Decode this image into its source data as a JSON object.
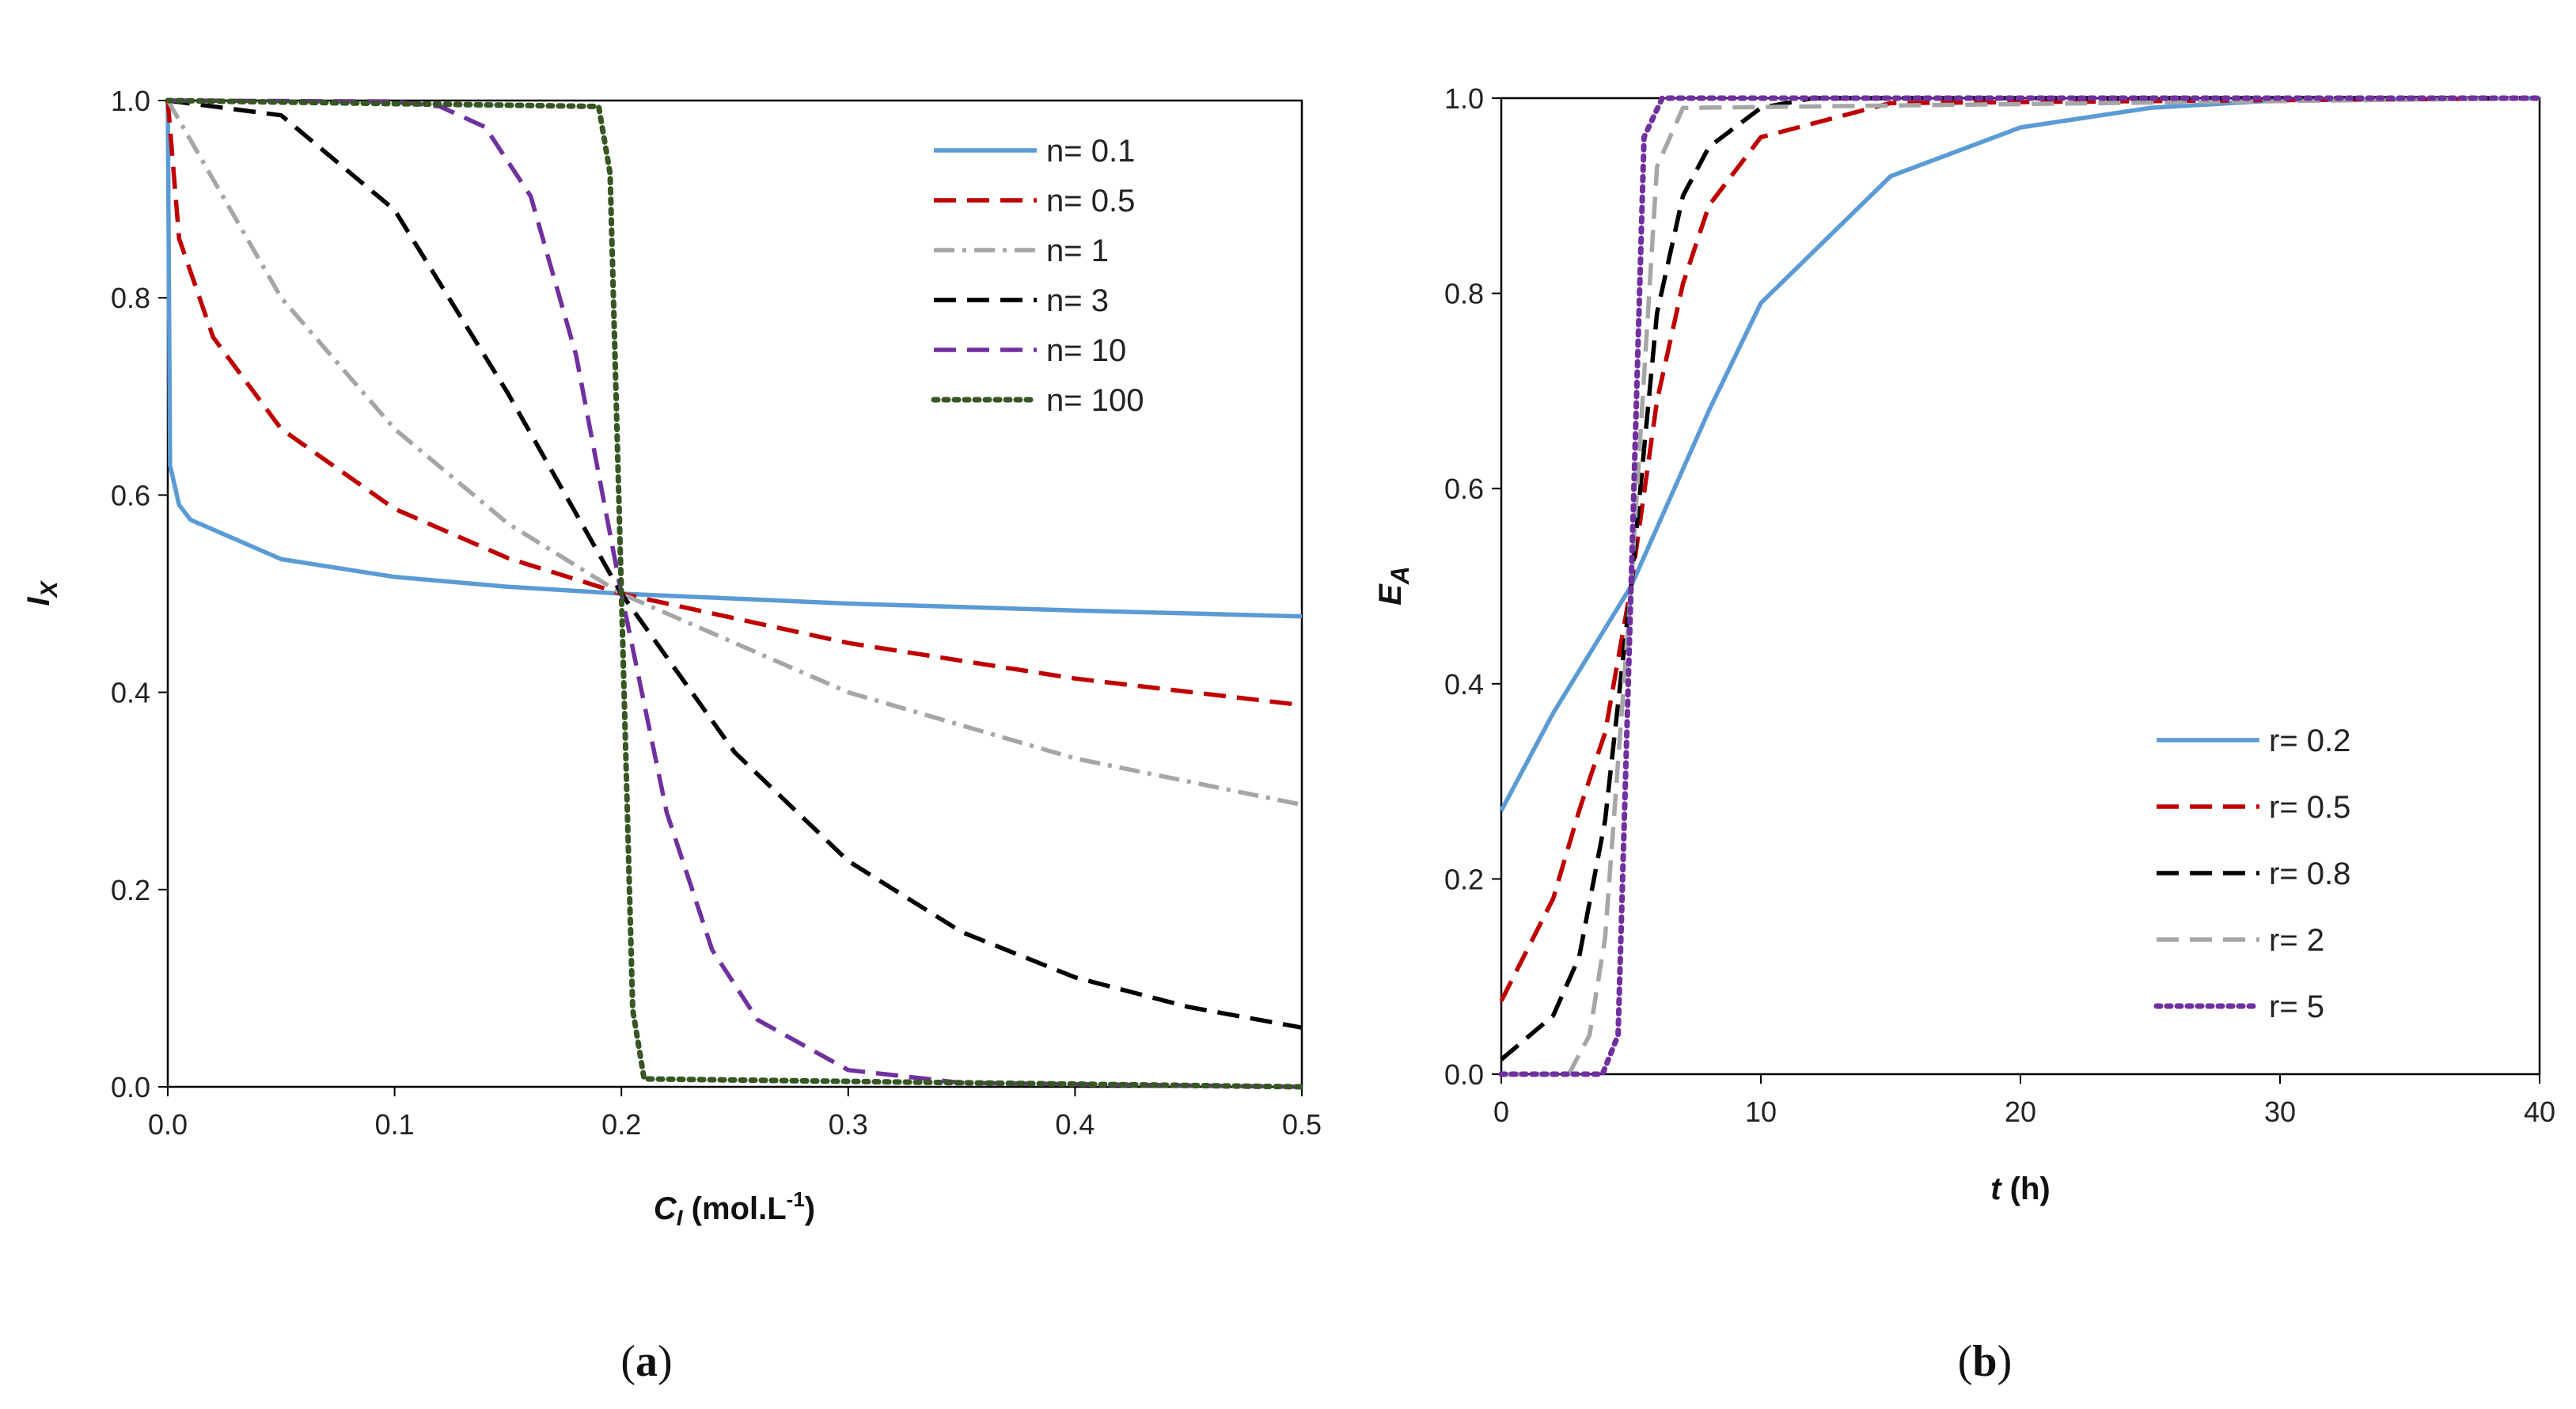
{
  "chart_data": [
    {
      "type": "line",
      "panel": "a",
      "caption_open": "(",
      "caption_letter": "a",
      "caption_close": ")",
      "xlabel_main": "C",
      "xlabel_sub": "I",
      "xlabel_unit": " (mol.L",
      "xlabel_sup": "-1",
      "xlabel_close": ")",
      "ylabel_main": "I",
      "ylabel_sub": "X",
      "xlim": [
        0,
        0.5
      ],
      "ylim": [
        0,
        1.0
      ],
      "xticks": [
        "0.0",
        "0.1",
        "0.2",
        "0.3",
        "0.4",
        "0.5"
      ],
      "yticks": [
        "0.0",
        "0.2",
        "0.4",
        "0.6",
        "0.8",
        "1.0"
      ],
      "legend_position": "top-right",
      "model": "I = 1 / (1 + (C/0.2)^n)",
      "series": [
        {
          "name": "n= 0.1",
          "color": "#5b9bd5",
          "style": "solid",
          "x": [
            0,
            0.001,
            0.005,
            0.01,
            0.05,
            0.1,
            0.15,
            0.2,
            0.3,
            0.4,
            0.5
          ],
          "values": [
            1.0,
            0.63,
            0.59,
            0.575,
            0.535,
            0.517,
            0.507,
            0.5,
            0.49,
            0.483,
            0.477
          ]
        },
        {
          "name": "n= 0.5",
          "color": "#c00000",
          "style": "dash",
          "x": [
            0,
            0.005,
            0.02,
            0.05,
            0.1,
            0.15,
            0.2,
            0.3,
            0.4,
            0.5
          ],
          "values": [
            1.0,
            0.86,
            0.76,
            0.667,
            0.586,
            0.536,
            0.5,
            0.45,
            0.414,
            0.387
          ]
        },
        {
          "name": "n= 1",
          "color": "#a6a6a6",
          "style": "dashdot",
          "x": [
            0,
            0.05,
            0.1,
            0.15,
            0.2,
            0.3,
            0.4,
            0.5
          ],
          "values": [
            1.0,
            0.8,
            0.667,
            0.571,
            0.5,
            0.4,
            0.333,
            0.286
          ]
        },
        {
          "name": "n= 3",
          "color": "#000000",
          "style": "dash",
          "x": [
            0,
            0.05,
            0.1,
            0.15,
            0.2,
            0.25,
            0.3,
            0.35,
            0.4,
            0.45,
            0.5
          ],
          "values": [
            1.0,
            0.985,
            0.889,
            0.703,
            0.5,
            0.339,
            0.229,
            0.157,
            0.111,
            0.081,
            0.06
          ]
        },
        {
          "name": "n= 10",
          "color": "#7030a0",
          "style": "dash",
          "x": [
            0,
            0.1,
            0.12,
            0.14,
            0.16,
            0.18,
            0.2,
            0.22,
            0.24,
            0.26,
            0.3,
            0.35,
            0.5
          ],
          "values": [
            1.0,
            0.999,
            0.994,
            0.973,
            0.903,
            0.742,
            0.5,
            0.278,
            0.139,
            0.068,
            0.017,
            0.004,
            0.0
          ]
        },
        {
          "name": "n= 100",
          "color": "#375623",
          "style": "dot",
          "x": [
            0,
            0.19,
            0.195,
            0.2,
            0.205,
            0.21,
            0.5
          ],
          "values": [
            1.0,
            0.994,
            0.926,
            0.5,
            0.078,
            0.008,
            0.0
          ]
        }
      ]
    },
    {
      "type": "line",
      "panel": "b",
      "caption_open": "(",
      "caption_letter": "b",
      "caption_close": ")",
      "xlabel_main": "t",
      "xlabel_unit": " (h)",
      "ylabel_main": "E",
      "ylabel_sub": "A",
      "xlim": [
        0,
        40
      ],
      "ylim": [
        0,
        1.0
      ],
      "xticks": [
        "0",
        "10",
        "20",
        "30",
        "40"
      ],
      "yticks": [
        "0.0",
        "0.2",
        "0.4",
        "0.6",
        "0.8",
        "1.0"
      ],
      "legend_position": "bottom-right",
      "model": "E = 1 - 0.5*exp(-r*(t-5)) for t>=5; 0.5*exp(r*(t-5)) for t<5",
      "series": [
        {
          "name": "r= 0.2",
          "color": "#5b9bd5",
          "style": "solid",
          "x": [
            0,
            2,
            5,
            8,
            10,
            15,
            20,
            25,
            30,
            40
          ],
          "values": [
            0.27,
            0.37,
            0.5,
            0.68,
            0.79,
            0.92,
            0.97,
            0.99,
            0.998,
            1.0
          ]
        },
        {
          "name": "r= 0.5",
          "color": "#c00000",
          "style": "dash",
          "x": [
            0,
            2,
            3,
            4,
            5,
            6,
            7,
            8,
            10,
            15,
            40
          ],
          "values": [
            0.075,
            0.18,
            0.27,
            0.35,
            0.5,
            0.69,
            0.81,
            0.89,
            0.96,
            0.995,
            1.0
          ]
        },
        {
          "name": "r= 0.8",
          "color": "#000000",
          "style": "dash",
          "x": [
            0,
            2,
            3,
            4,
            5,
            6,
            7,
            8,
            10,
            12,
            40
          ],
          "values": [
            0.015,
            0.06,
            0.12,
            0.26,
            0.5,
            0.78,
            0.9,
            0.95,
            0.99,
            1.0,
            1.0
          ]
        },
        {
          "name": "r= 2",
          "color": "#a6a6a6",
          "style": "dash",
          "x": [
            0,
            2.6,
            3.4,
            4,
            5,
            6,
            7,
            40
          ],
          "values": [
            0.0,
            0.0,
            0.04,
            0.14,
            0.5,
            0.93,
            0.99,
            1.0
          ]
        },
        {
          "name": "r= 5",
          "color": "#7030a0",
          "style": "dot",
          "x": [
            0,
            3.9,
            4.5,
            5,
            5.5,
            6.2,
            40
          ],
          "values": [
            0.0,
            0.0,
            0.04,
            0.5,
            0.96,
            1.0,
            1.0
          ]
        }
      ]
    }
  ]
}
